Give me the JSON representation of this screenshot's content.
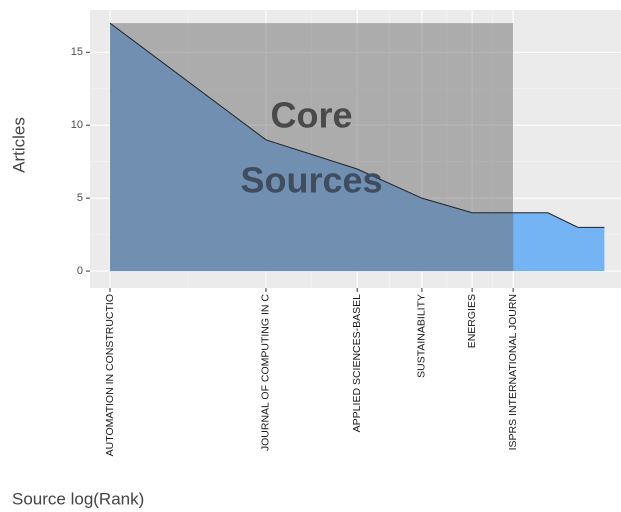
{
  "chart_data": {
    "type": "area",
    "ylabel": "Articles",
    "xlabel": "Source log(Rank)",
    "annotation": [
      "Core",
      "Sources"
    ],
    "x": [
      1,
      2,
      3,
      4,
      5,
      6,
      7,
      8,
      9
    ],
    "values": [
      17,
      9,
      7,
      5,
      4,
      4,
      4,
      3,
      3
    ],
    "color": "#74b3f4",
    "core_range": [
      1,
      6
    ],
    "core_color": "#6e6e6e",
    "xscale": "log",
    "xlim": [
      0.915,
      9.69
    ],
    "ylim": [
      -1.16,
      17.9
    ],
    "yticks": [
      0,
      5,
      10,
      15
    ],
    "xticks": [
      {
        "value": 1,
        "label": "AUTOMATION IN CONSTRUCTIO"
      },
      {
        "value": 2,
        "label": "JOURNAL OF COMPUTING IN C"
      },
      {
        "value": 3,
        "label": "APPLIED SCIENCES-BASEL"
      },
      {
        "value": 4,
        "label": "SUSTAINABILITY"
      },
      {
        "value": 5,
        "label": "ENERGIES"
      },
      {
        "value": 6,
        "label": "ISPRS INTERNATIONAL JOURN"
      }
    ],
    "grid": true
  }
}
